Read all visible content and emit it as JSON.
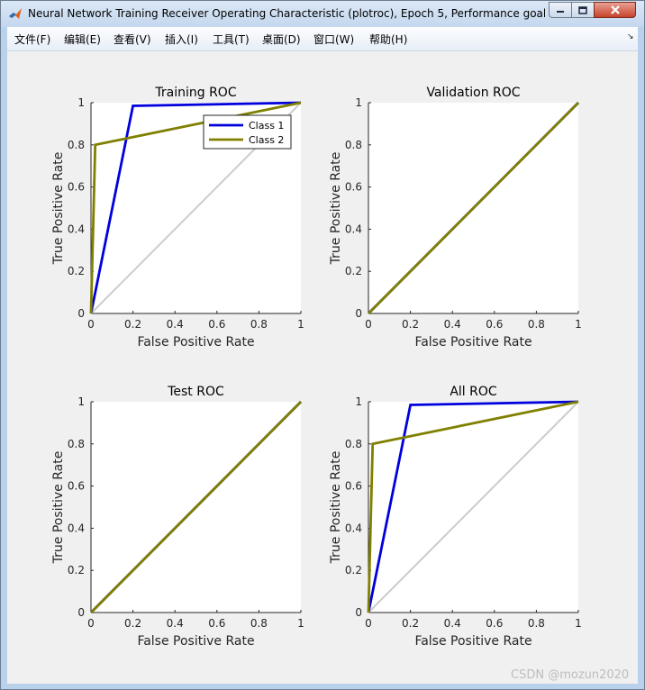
{
  "window": {
    "title": "Neural Network Training Receiver Operating Characteristic (plotroc), Epoch 5, Performance goal m..."
  },
  "menu": {
    "items": [
      "文件(F)",
      "编辑(E)",
      "查看(V)",
      "插入(I)",
      "工具(T)",
      "桌面(D)",
      "窗口(W)",
      "帮助(H)"
    ]
  },
  "watermark": "CSDN @mozun2020",
  "colors": {
    "class1": "#0000dd",
    "class2": "#808000",
    "diagonal": "#cccccc"
  },
  "chart_data": [
    {
      "type": "line",
      "title": "Training ROC",
      "xlabel": "False Positive Rate",
      "ylabel": "True Positive Rate",
      "xlim": [
        0,
        1
      ],
      "ylim": [
        0,
        1
      ],
      "xticks": [
        "0",
        "0.2",
        "0.4",
        "0.6",
        "0.8",
        "1"
      ],
      "yticks": [
        "0",
        "0.2",
        "0.4",
        "0.6",
        "0.8",
        "1"
      ],
      "legend": {
        "placement": "top-right"
      },
      "series": [
        {
          "name": "Class 1",
          "color": "#0000dd",
          "x": [
            0,
            0.2,
            1
          ],
          "y": [
            0,
            0.985,
            1
          ]
        },
        {
          "name": "Class 2",
          "color": "#808000",
          "x": [
            0,
            0.02,
            1
          ],
          "y": [
            0,
            0.8,
            1
          ]
        }
      ]
    },
    {
      "type": "line",
      "title": "Validation ROC",
      "xlabel": "False Positive Rate",
      "ylabel": "True Positive Rate",
      "xlim": [
        0,
        1
      ],
      "ylim": [
        0,
        1
      ],
      "xticks": [
        "0",
        "0.2",
        "0.4",
        "0.6",
        "0.8",
        "1"
      ],
      "yticks": [
        "0",
        "0.2",
        "0.4",
        "0.6",
        "0.8",
        "1"
      ],
      "series": [
        {
          "color": "#0000dd",
          "x": [
            0,
            1
          ],
          "y": [
            0,
            1
          ]
        },
        {
          "color": "#808000",
          "x": [
            0,
            1
          ],
          "y": [
            0,
            1
          ]
        }
      ]
    },
    {
      "type": "line",
      "title": "Test ROC",
      "xlabel": "False Positive Rate",
      "ylabel": "True Positive Rate",
      "xlim": [
        0,
        1
      ],
      "ylim": [
        0,
        1
      ],
      "xticks": [
        "0",
        "0.2",
        "0.4",
        "0.6",
        "0.8",
        "1"
      ],
      "yticks": [
        "0",
        "0.2",
        "0.4",
        "0.6",
        "0.8",
        "1"
      ],
      "series": [
        {
          "color": "#0000dd",
          "x": [
            0,
            1
          ],
          "y": [
            0,
            1
          ]
        },
        {
          "color": "#808000",
          "x": [
            0,
            1
          ],
          "y": [
            0,
            1
          ]
        }
      ]
    },
    {
      "type": "line",
      "title": "All ROC",
      "xlabel": "False Positive Rate",
      "ylabel": "True Positive Rate",
      "xlim": [
        0,
        1
      ],
      "ylim": [
        0,
        1
      ],
      "xticks": [
        "0",
        "0.2",
        "0.4",
        "0.6",
        "0.8",
        "1"
      ],
      "yticks": [
        "0",
        "0.2",
        "0.4",
        "0.6",
        "0.8",
        "1"
      ],
      "series": [
        {
          "color": "#0000dd",
          "x": [
            0,
            0.2,
            1
          ],
          "y": [
            0,
            0.985,
            1
          ]
        },
        {
          "color": "#808000",
          "x": [
            0,
            0.02,
            1
          ],
          "y": [
            0,
            0.8,
            1
          ]
        }
      ]
    }
  ]
}
